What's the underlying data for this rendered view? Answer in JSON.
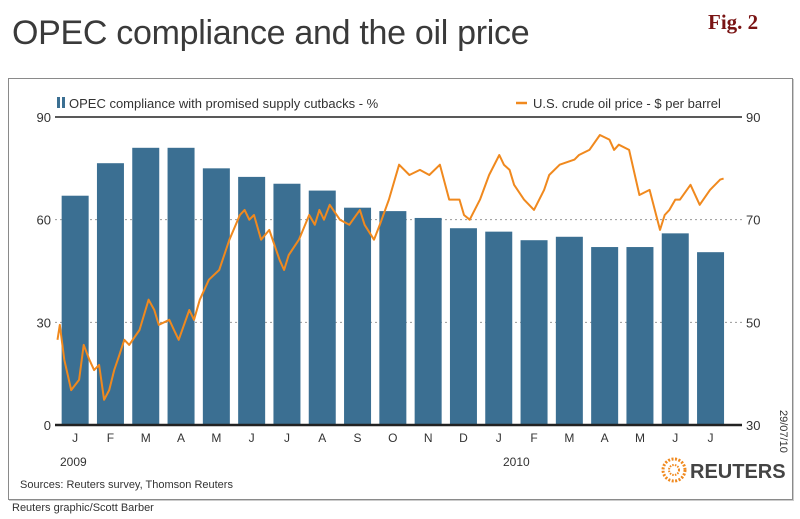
{
  "header": {
    "title": "OPEC compliance and the oil price",
    "fig_label": "Fig. 2"
  },
  "chart_data": {
    "type": "bar+line",
    "title": "OPEC compliance and the oil price",
    "categories": [
      "J",
      "F",
      "M",
      "A",
      "M",
      "J",
      "J",
      "A",
      "S",
      "O",
      "N",
      "D",
      "J",
      "F",
      "M",
      "A",
      "M",
      "J",
      "J"
    ],
    "year_labels": [
      "2009",
      "2010"
    ],
    "left_axis": {
      "ylim": [
        0,
        90
      ],
      "ticks": [
        0,
        30,
        60,
        90
      ]
    },
    "right_axis": {
      "ylim": [
        30,
        90
      ],
      "ticks": [
        30,
        50,
        70,
        90
      ]
    },
    "grid": "dotted horizontal at 30 and 60 (left axis)",
    "legend_placement": "top",
    "series": [
      {
        "name": "OPEC compliance with promised supply cutbacks - %",
        "type": "bar",
        "axis": "left",
        "color": "#3b6f92",
        "values": [
          67,
          76.5,
          81,
          81,
          75,
          72.5,
          70.5,
          68.5,
          63.5,
          62.5,
          60.5,
          57.5,
          56.5,
          54,
          55,
          52,
          52,
          56,
          50.5
        ]
      },
      {
        "name": "U.S. crude oil price - $ per barrel",
        "type": "line",
        "axis": "right",
        "color": "#f0891e",
        "points": [
          [
            "2009-01-01",
            46.6
          ],
          [
            "2009-01-03",
            49.5
          ],
          [
            "2009-01-07",
            42.7
          ],
          [
            "2009-01-13",
            36.8
          ],
          [
            "2009-01-20",
            38.8
          ],
          [
            "2009-01-24",
            45.6
          ],
          [
            "2009-01-29",
            42.7
          ],
          [
            "2009-02-02",
            40.7
          ],
          [
            "2009-02-06",
            41.7
          ],
          [
            "2009-02-10",
            34.9
          ],
          [
            "2009-02-14",
            36.8
          ],
          [
            "2009-02-18",
            40.7
          ],
          [
            "2009-02-22",
            43.6
          ],
          [
            "2009-02-26",
            46.6
          ],
          [
            "2009-03-02",
            45.6
          ],
          [
            "2009-03-11",
            48.5
          ],
          [
            "2009-03-19",
            54.4
          ],
          [
            "2009-03-24",
            52.4
          ],
          [
            "2009-03-28",
            49.5
          ],
          [
            "2009-04-06",
            50.5
          ],
          [
            "2009-04-10",
            48.5
          ],
          [
            "2009-04-14",
            46.6
          ],
          [
            "2009-04-23",
            52.4
          ],
          [
            "2009-04-27",
            50.5
          ],
          [
            "2009-05-02",
            54.4
          ],
          [
            "2009-05-10",
            58.3
          ],
          [
            "2009-05-19",
            60.2
          ],
          [
            "2009-05-28",
            66.1
          ],
          [
            "2009-06-06",
            70.9
          ],
          [
            "2009-06-10",
            71.9
          ],
          [
            "2009-06-14",
            70.0
          ],
          [
            "2009-06-18",
            70.9
          ],
          [
            "2009-06-24",
            66.1
          ],
          [
            "2009-07-01",
            68.0
          ],
          [
            "2009-07-10",
            62.2
          ],
          [
            "2009-07-14",
            60.2
          ],
          [
            "2009-07-18",
            63.1
          ],
          [
            "2009-07-27",
            66.1
          ],
          [
            "2009-08-05",
            70.9
          ],
          [
            "2009-08-10",
            69.0
          ],
          [
            "2009-08-14",
            71.9
          ],
          [
            "2009-08-18",
            70.0
          ],
          [
            "2009-08-23",
            72.9
          ],
          [
            "2009-09-01",
            70.0
          ],
          [
            "2009-09-09",
            69.0
          ],
          [
            "2009-09-18",
            71.9
          ],
          [
            "2009-09-22",
            69.0
          ],
          [
            "2009-09-30",
            66.1
          ],
          [
            "2009-10-05",
            69.0
          ],
          [
            "2009-10-13",
            73.9
          ],
          [
            "2009-10-22",
            80.7
          ],
          [
            "2009-10-31",
            78.7
          ],
          [
            "2009-11-09",
            79.7
          ],
          [
            "2009-11-17",
            78.7
          ],
          [
            "2009-11-26",
            80.7
          ],
          [
            "2009-12-04",
            73.9
          ],
          [
            "2009-12-13",
            73.9
          ],
          [
            "2009-12-17",
            70.9
          ],
          [
            "2009-12-22",
            70.0
          ],
          [
            "2009-12-31",
            73.9
          ],
          [
            "2010-01-08",
            78.7
          ],
          [
            "2010-01-17",
            82.6
          ],
          [
            "2010-01-21",
            80.7
          ],
          [
            "2010-01-26",
            79.7
          ],
          [
            "2010-01-30",
            76.8
          ],
          [
            "2010-02-07",
            73.9
          ],
          [
            "2010-02-15",
            71.9
          ],
          [
            "2010-02-23",
            75.8
          ],
          [
            "2010-02-27",
            78.7
          ],
          [
            "2010-03-08",
            80.7
          ],
          [
            "2010-03-21",
            81.7
          ],
          [
            "2010-03-25",
            82.6
          ],
          [
            "2010-04-03",
            83.6
          ],
          [
            "2010-04-12",
            86.5
          ],
          [
            "2010-04-20",
            85.6
          ],
          [
            "2010-04-24",
            83.6
          ],
          [
            "2010-04-28",
            84.6
          ],
          [
            "2010-05-07",
            83.6
          ],
          [
            "2010-05-16",
            74.8
          ],
          [
            "2010-05-25",
            75.8
          ],
          [
            "2010-06-03",
            68.0
          ],
          [
            "2010-06-07",
            70.9
          ],
          [
            "2010-06-11",
            71.9
          ],
          [
            "2010-06-16",
            73.9
          ],
          [
            "2010-06-20",
            73.9
          ],
          [
            "2010-06-29",
            76.8
          ],
          [
            "2010-07-07",
            72.9
          ],
          [
            "2010-07-16",
            75.8
          ],
          [
            "2010-07-25",
            77.8
          ],
          [
            "2010-07-28",
            78.0
          ]
        ]
      }
    ],
    "date_stamp": "29/07/10"
  },
  "sources": "Sources: Reuters survey, Thomson Reuters",
  "brand": "REUTERS",
  "footer": "Reuters graphic/Scott Barber"
}
